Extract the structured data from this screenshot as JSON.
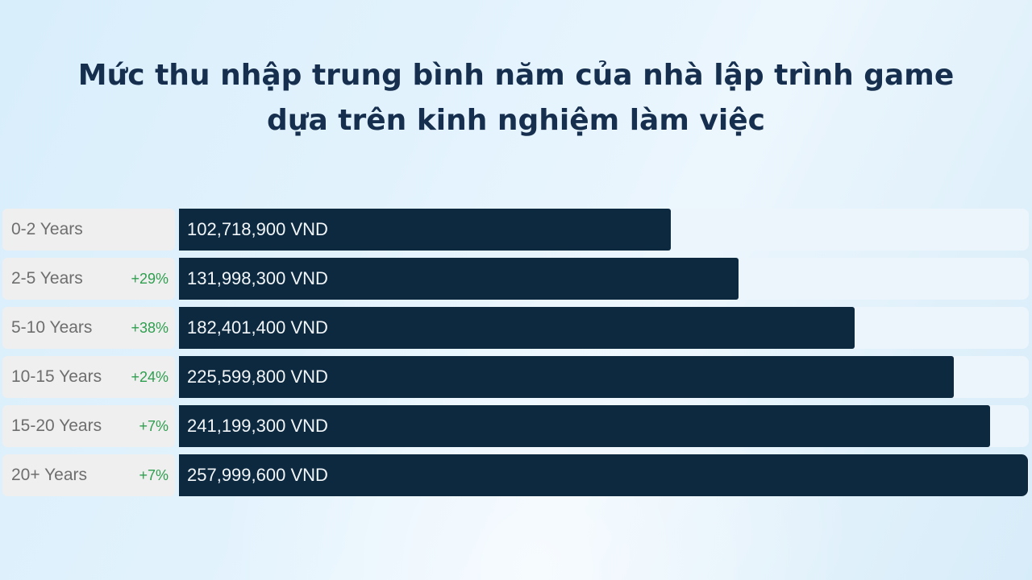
{
  "title": {
    "line1": "Mức thu nhập trung bình năm của nhà lập trình game",
    "line2": "dựa trên kinh nghiệm làm việc"
  },
  "chart_data": {
    "type": "bar",
    "orientation": "horizontal",
    "title": "Mức thu nhập trung bình năm của nhà lập trình game dựa trên kinh nghiệm làm việc",
    "categories": [
      "0-2 Years",
      "2-5 Years",
      "5-10 Years",
      "10-15 Years",
      "15-20 Years",
      "20+ Years"
    ],
    "values": [
      102718900,
      131998300,
      182401400,
      225599800,
      241199300,
      257999600
    ],
    "value_labels": [
      "102,718,900 VND",
      "131,998,300 VND",
      "182,401,400 VND",
      "225,599,800 VND",
      "241,199,300 VND",
      "257,999,600 VND"
    ],
    "growth_labels": [
      "",
      "+29%",
      "+38%",
      "+24%",
      "+7%",
      "+7%"
    ],
    "unit": "VND",
    "xlabel": "",
    "ylabel": "",
    "legend": "none",
    "grid": false,
    "xlim": [
      0,
      257999600
    ]
  },
  "colors": {
    "background_start": "#d8eefb",
    "background_end": "#d7ecf9",
    "title": "#172f4e",
    "bar": "#0c2940",
    "bar_value_text": "#f2f6f8",
    "track": "#ecf5fb",
    "label_box": "#efefef",
    "label_text": "#6e6e6e",
    "growth_green": "#2f9e4f"
  }
}
